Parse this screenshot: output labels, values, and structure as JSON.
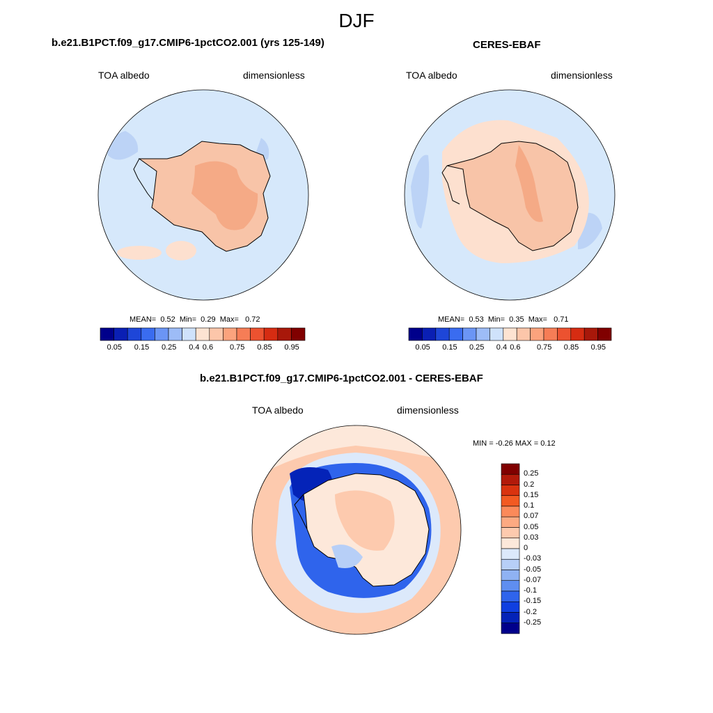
{
  "figure_title": "DJF",
  "colors": {
    "ocean_light_blue": "#d6e8fb",
    "ice_peach": "#fde0cf",
    "land_salmon": "#f8c4a8",
    "interior_salmon": "#f5aa86",
    "coast_line": "#000000"
  },
  "panels": [
    {
      "title": "b.e21.B1PCT.f09_g17.CMIP6-1pctCO2.001 (yrs 125-149)",
      "variable": "TOA albedo",
      "units": "dimensionless",
      "stats": {
        "mean_label": "MEAN=",
        "mean": "0.52",
        "min_label": "Min=",
        "min": "0.29",
        "max_label": "Max=",
        "max": "0.72"
      }
    },
    {
      "title": "CERES-EBAF",
      "variable": "TOA albedo",
      "units": "dimensionless",
      "stats": {
        "mean_label": "MEAN=",
        "mean": "0.53",
        "min_label": "Min=",
        "min": "0.35",
        "max_label": "Max=",
        "max": "0.71"
      }
    }
  ],
  "abs_colorbar": {
    "colors": [
      "#00008b",
      "#0a1fb4",
      "#1e46d8",
      "#3a6cf0",
      "#6b95f5",
      "#9dbcf7",
      "#cfe2fb",
      "#fde3d2",
      "#fcc6aa",
      "#fba37d",
      "#f67d56",
      "#ec5230",
      "#d62c12",
      "#a8180a",
      "#800000"
    ],
    "tick_labels": [
      "0.05",
      "0.15",
      "0.25",
      "0.4",
      "0.6",
      "0.75",
      "0.85",
      "0.95"
    ]
  },
  "diff_panel": {
    "title": "b.e21.B1PCT.f09_g17.CMIP6-1pctCO2.001 - CERES-EBAF",
    "variable": "TOA albedo",
    "units": "dimensionless",
    "minmax_text": "MIN =  -0.26 MAX =   0.12"
  },
  "diff_colorbar": {
    "colors_top_to_bottom": [
      "#800000",
      "#b21a0a",
      "#d9330f",
      "#f25a22",
      "#fb8a5a",
      "#fcaa82",
      "#fdcaae",
      "#fde8da",
      "#dce9fb",
      "#b7cff7",
      "#8fb2f3",
      "#5f8ef0",
      "#2f64ec",
      "#0f3fe0",
      "#0423b8",
      "#00008b"
    ],
    "tick_labels": [
      "0.25",
      "0.2",
      "0.15",
      "0.1",
      "0.07",
      "0.05",
      "0.03",
      "0",
      "-0.03",
      "-0.05",
      "-0.07",
      "-0.1",
      "-0.15",
      "-0.2",
      "-0.25"
    ]
  }
}
